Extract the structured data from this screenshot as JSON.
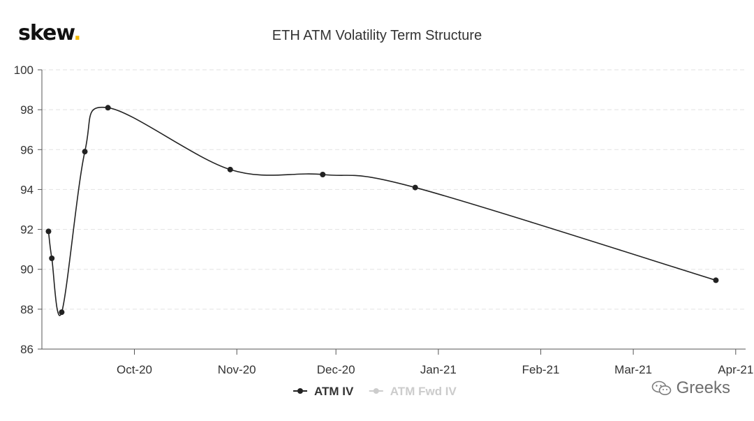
{
  "brand": {
    "name": "skew",
    "dot": "."
  },
  "watermark": "Greeks",
  "chart_data": {
    "type": "line",
    "title": "ETH ATM Volatility Term Structure",
    "xlabel": "",
    "ylabel": "",
    "ylim": [
      86,
      100
    ],
    "yticks": [
      86,
      88,
      90,
      92,
      94,
      96,
      98,
      100
    ],
    "xlim": [
      "2020-09-03",
      "2021-04-04"
    ],
    "xtick_labels": [
      {
        "date": "2020-10-01",
        "label": "Oct-20"
      },
      {
        "date": "2020-11-01",
        "label": "Nov-20"
      },
      {
        "date": "2020-12-01",
        "label": "Dec-20"
      },
      {
        "date": "2021-01-01",
        "label": "Jan-21"
      },
      {
        "date": "2021-02-01",
        "label": "Feb-21"
      },
      {
        "date": "2021-03-01",
        "label": "Mar-21"
      },
      {
        "date": "2021-04-01",
        "label": "Apr-21"
      }
    ],
    "grid": "horizontal dashed",
    "legend_position": "bottom",
    "series": [
      {
        "name": "ATM IV",
        "color": "#222222",
        "visible": true,
        "points": [
          {
            "x": "2020-09-05",
            "y": 91.9
          },
          {
            "x": "2020-09-06",
            "y": 90.55
          },
          {
            "x": "2020-09-09",
            "y": 87.85
          },
          {
            "x": "2020-09-16",
            "y": 95.9
          },
          {
            "x": "2020-09-23",
            "y": 98.1
          },
          {
            "x": "2020-10-30",
            "y": 95.0
          },
          {
            "x": "2020-11-27",
            "y": 94.75
          },
          {
            "x": "2020-12-25",
            "y": 94.1
          },
          {
            "x": "2021-03-26",
            "y": 89.45
          }
        ]
      },
      {
        "name": "ATM Fwd IV",
        "color": "#cccccc",
        "visible": false,
        "points": []
      }
    ]
  }
}
